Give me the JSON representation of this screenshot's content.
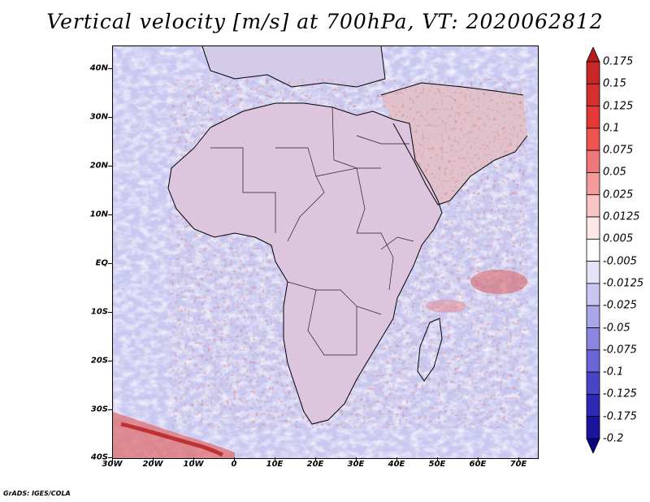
{
  "title": "Vertical velocity [m/s] at 700hPa, VT: 2020062812",
  "footer": "GrADS: IGES/COLA",
  "map": {
    "region": "Africa and Middle East",
    "projection": "lat-lon",
    "lon_range_deg": [
      -30,
      75
    ],
    "lat_range_deg": [
      -40,
      45
    ],
    "lat_labels": [
      "40N",
      "30N",
      "20N",
      "10N",
      "EQ",
      "10S",
      "20S",
      "30S",
      "40S"
    ],
    "lon_labels": [
      "30W",
      "20W",
      "10W",
      "0",
      "10E",
      "20E",
      "30E",
      "40E",
      "50E",
      "60E",
      "70E"
    ]
  },
  "colorbar": {
    "labels": [
      "0.175",
      "0.15",
      "0.125",
      "0.1",
      "0.075",
      "0.05",
      "0.025",
      "0.0125",
      "0.005",
      "-0.005",
      "-0.0125",
      "-0.025",
      "-0.05",
      "-0.075",
      "-0.1",
      "-0.125",
      "-0.175",
      "-0.2"
    ],
    "colors": [
      "#b71c1c",
      "#c62828",
      "#d32f2f",
      "#e53935",
      "#ef5350",
      "#f0787a",
      "#f59a9a",
      "#f9c4c4",
      "#fde6e6",
      "#ffffff",
      "#e4e3f8",
      "#c9c7f1",
      "#a9a6ea",
      "#8a86e0",
      "#6a66d6",
      "#4a45c8",
      "#2e29b5",
      "#1a14a0",
      "#0a0580"
    ]
  },
  "colors": {
    "frame": "#000000",
    "background": "#ffffff"
  }
}
